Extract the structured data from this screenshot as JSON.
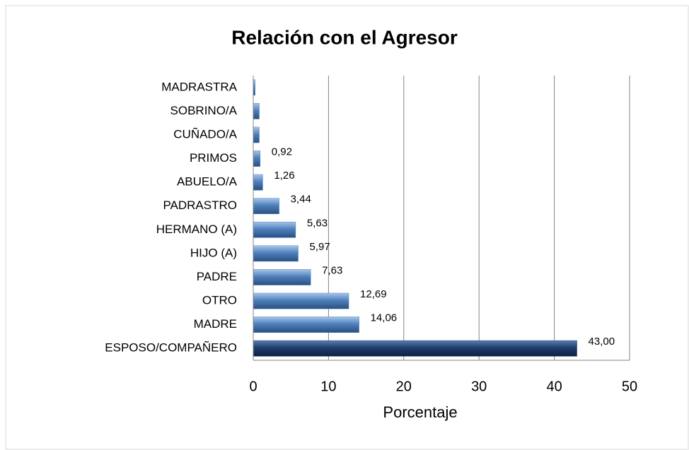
{
  "chart_data": {
    "type": "bar",
    "orientation": "horizontal",
    "title": "Relación con el Agresor",
    "categories": [
      "MADRASTRA",
      "SOBRINO/A",
      "CUÑADO/A",
      "PRIMOS",
      "ABUELO/A",
      "PADRASTRO",
      "HERMANO (A)",
      "HIJO (A)",
      "PADRE",
      "OTRO",
      "MADRE",
      "ESPOSO/COMPAÑERO"
    ],
    "values": [
      0.25,
      0.8,
      0.8,
      0.92,
      1.26,
      3.44,
      5.63,
      5.97,
      7.63,
      12.69,
      14.06,
      43.0
    ],
    "value_labels": [
      null,
      null,
      null,
      "0,92",
      "1,26",
      "3,44",
      "5,63",
      "5,97",
      "7,63",
      "12,69",
      "14,06",
      "43,00"
    ],
    "colors": [
      "#4f81bd",
      "#4f81bd",
      "#4f81bd",
      "#4f81bd",
      "#4f81bd",
      "#4f81bd",
      "#4f81bd",
      "#4f81bd",
      "#4f81bd",
      "#4f81bd",
      "#4f81bd",
      "#1f3d6e"
    ],
    "xlabel": "Porcentaje",
    "xlim": [
      0,
      50
    ],
    "xticks": [
      0,
      10,
      20,
      30,
      40,
      50
    ],
    "grid": true
  }
}
